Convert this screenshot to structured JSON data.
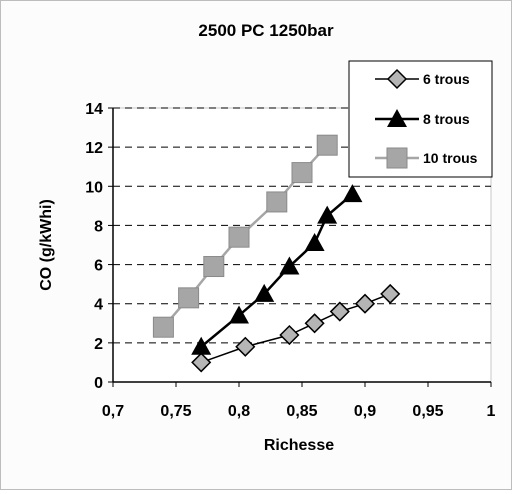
{
  "chart_data": {
    "type": "line",
    "title": "2500 PC 1250bar",
    "xlabel": "Richesse",
    "ylabel": "CO (g/kWhi)",
    "xlim": [
      0.7,
      1.0
    ],
    "ylim": [
      0,
      14
    ],
    "x_ticks": [
      "0,7",
      "0,75",
      "0,8",
      "0,85",
      "0,9",
      "0,95",
      "1"
    ],
    "y_ticks": [
      "0",
      "2",
      "4",
      "6",
      "8",
      "10",
      "12",
      "14"
    ],
    "grid": "horizontal dashed",
    "legend_position": "top-right",
    "series": [
      {
        "name": "6 trous",
        "marker": "diamond",
        "color": "#000000",
        "points": [
          [
            0.77,
            1.0
          ],
          [
            0.805,
            1.8
          ],
          [
            0.84,
            2.4
          ],
          [
            0.86,
            3.0
          ],
          [
            0.88,
            3.6
          ],
          [
            0.9,
            4.0
          ],
          [
            0.92,
            4.5
          ]
        ]
      },
      {
        "name": "8 trous",
        "marker": "triangle",
        "color": "#000000",
        "points": [
          [
            0.77,
            1.8
          ],
          [
            0.8,
            3.4
          ],
          [
            0.82,
            4.5
          ],
          [
            0.84,
            5.9
          ],
          [
            0.86,
            7.1
          ],
          [
            0.87,
            8.5
          ],
          [
            0.89,
            9.6
          ]
        ]
      },
      {
        "name": "10 trous",
        "marker": "square",
        "color": "#a6a6a6",
        "points": [
          [
            0.74,
            2.8
          ],
          [
            0.76,
            4.3
          ],
          [
            0.78,
            5.9
          ],
          [
            0.8,
            7.4
          ],
          [
            0.83,
            9.2
          ],
          [
            0.85,
            10.7
          ],
          [
            0.87,
            12.1
          ]
        ]
      }
    ]
  }
}
